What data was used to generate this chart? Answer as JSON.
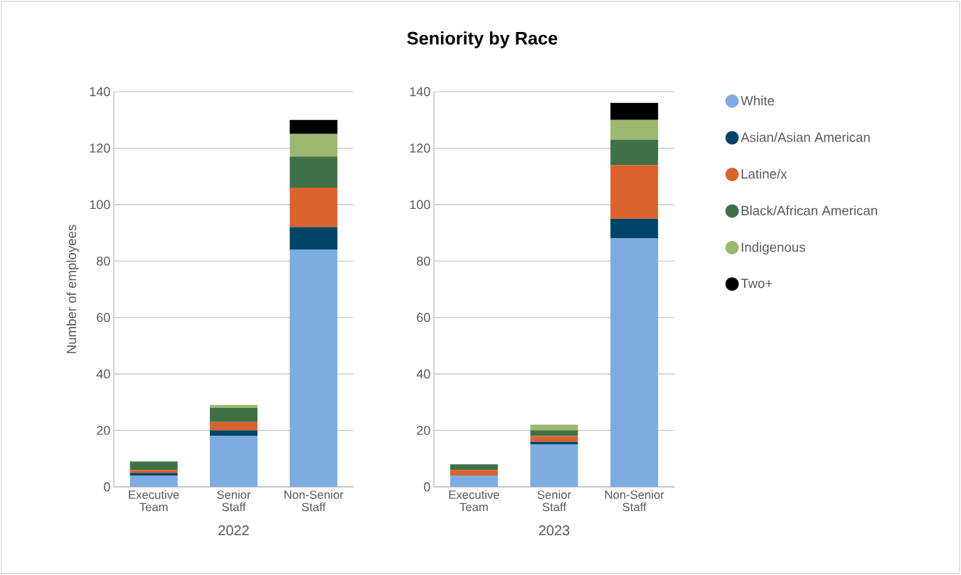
{
  "chart_data": [
    {
      "type": "bar",
      "stacked": true,
      "xlabel": "2022",
      "ylabel": "Number of employees",
      "categories": [
        "Executive Team",
        "Senior Staff",
        "Non-Senior Staff"
      ],
      "ylim": [
        0,
        140
      ],
      "yticks": [
        0,
        20,
        40,
        60,
        80,
        100,
        120,
        140
      ],
      "grid": "y",
      "series": [
        {
          "color": "#7eabe2",
          "values": [
            4,
            18,
            84
          ]
        },
        {
          "color": "#004567",
          "values": [
            1,
            2,
            8
          ]
        },
        {
          "color": "#d9622f",
          "values": [
            1,
            3,
            14
          ]
        },
        {
          "color": "#3f7146",
          "values": [
            3,
            5,
            11
          ]
        },
        {
          "color": "#9bb870",
          "values": [
            0,
            1,
            8
          ]
        },
        {
          "color": "#000000",
          "values": [
            0,
            0,
            5
          ]
        }
      ]
    },
    {
      "type": "bar",
      "stacked": true,
      "title": "Seniority by Race",
      "xlabel": "2023",
      "categories": [
        "Executive Team",
        "Senior Staff",
        "Non-Senior Staff"
      ],
      "ylim": [
        0,
        140
      ],
      "yticks": [
        0,
        20,
        40,
        60,
        80,
        100,
        120,
        140
      ],
      "grid": "y",
      "legend": "right",
      "series": [
        {
          "name": "White",
          "color": "#7eabe2",
          "values": [
            4,
            15,
            88
          ]
        },
        {
          "name": "Asian/Asian American",
          "color": "#004567",
          "values": [
            0,
            1,
            7
          ]
        },
        {
          "name": "Latine/x",
          "color": "#d9622f",
          "values": [
            2,
            2,
            19
          ]
        },
        {
          "name": "Black/African American",
          "color": "#3f7146",
          "values": [
            2,
            2,
            9
          ]
        },
        {
          "name": "Indigenous",
          "color": "#9bb870",
          "values": [
            0,
            2,
            7
          ]
        },
        {
          "name": "Two+",
          "color": "#000000",
          "values": [
            0,
            0,
            6
          ]
        }
      ]
    }
  ]
}
